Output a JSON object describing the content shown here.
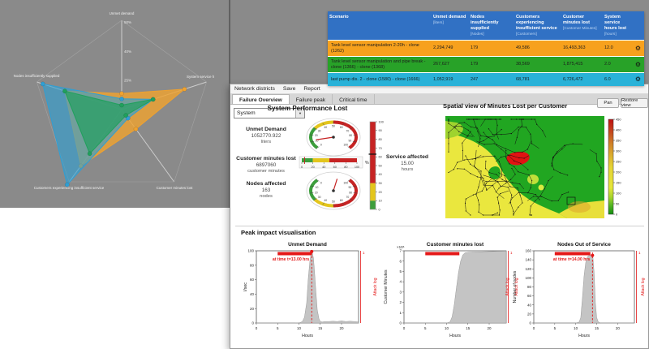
{
  "table": {
    "columns": [
      {
        "label": "Scenario",
        "sub": ""
      },
      {
        "label": "Unmet demand",
        "sub": "[liters]"
      },
      {
        "label": "Nodes insufficiently supplied",
        "sub": "[Nodes]"
      },
      {
        "label": "Customers experiencing insufficient service",
        "sub": "[Customers]"
      },
      {
        "label": "Customer minutes lost",
        "sub": "[Customer Minutes]"
      },
      {
        "label": "System service hours lost",
        "sub": "[hours]"
      }
    ],
    "rows": [
      {
        "scenario": "Tank level sensor manipulation 2-20h - clone (1262)",
        "values": [
          "2,294,749",
          "179",
          "49,586",
          "16,493,363",
          "12.0"
        ],
        "color": "#f7a11d"
      },
      {
        "scenario": "Tank level sensor manipulation and pipe break - clone (1366) - clone (1368)",
        "values": [
          "267,627",
          "179",
          "38,569",
          "1,875,415",
          "2.0"
        ],
        "color": "#28a228"
      },
      {
        "scenario": "last pump dis. 2 - clone (1580) - clone (1666)",
        "values": [
          "1,052,919",
          "247",
          "68,781",
          "6,726,472",
          "6.0"
        ],
        "color": "#29b2d8"
      }
    ],
    "gear_icon": "⚙"
  },
  "window": {
    "menu": [
      "Network districts",
      "Save",
      "Report"
    ],
    "tabs": [
      "Failure Overview",
      "Failure peak",
      "Critical time"
    ],
    "active_tab": "Failure Overview",
    "selector_value": "System",
    "left_title": "System Performance Lost",
    "peak_title": "Peak impact visualisation",
    "gauges": {
      "unmet": {
        "label": "Unmet Demand",
        "value": "1052770.922",
        "unit": "liters"
      },
      "cml": {
        "label": "Customer minutes lost",
        "value": "6897060",
        "unit": "customer minutes"
      },
      "nodes": {
        "label": "Nodes affected",
        "value": "163",
        "unit": "nodes"
      },
      "service": {
        "label": "Service affected",
        "value": "15.00",
        "unit": "hours"
      },
      "dial_ticks": [
        0,
        10,
        20,
        30,
        40,
        50,
        60,
        70,
        80,
        90,
        100
      ],
      "dial_segments": [
        [
          0,
          30,
          "#3c9e3c"
        ],
        [
          30,
          50,
          "#e3c51c"
        ],
        [
          50,
          100,
          "#c62323"
        ]
      ],
      "dial1_value": 12,
      "dial2_needle_deg": 78,
      "linear": {
        "ticks": [
          0,
          20,
          40,
          60,
          80,
          100
        ],
        "segments": [
          [
            0,
            20,
            "#3c9e3c"
          ],
          [
            20,
            50,
            "#e3c51c"
          ],
          [
            50,
            100,
            "#c62323"
          ]
        ],
        "marker": 5,
        "unit": "%"
      },
      "vertical": {
        "ticks": [
          0,
          10,
          20,
          30,
          40,
          50,
          60,
          70,
          80,
          90,
          100
        ],
        "segments": [
          [
            0,
            10,
            "#3c9e3c"
          ],
          [
            10,
            30,
            "#e3c51c"
          ],
          [
            30,
            100,
            "#c62323"
          ]
        ],
        "marker": 63
      }
    },
    "map": {
      "title": "Spatial view of Minutes Lost per Customer",
      "buttons": [
        "Pan",
        "Restore view"
      ],
      "colorbar_ticks": [
        0,
        50,
        100,
        150,
        200,
        250,
        300,
        350,
        400,
        450
      ],
      "colors": {
        "green": "#21a621",
        "yellow": "#eae73e",
        "red": "#e01212",
        "light_green": "#9fd32e",
        "orange": "#dfa42c"
      }
    }
  },
  "chart_data": [
    {
      "type": "radar",
      "axes": [
        "Unmet demand",
        "System service h",
        "Customer minutes lost",
        "Customers experiencing insufficient service",
        "Nodes insufficiently supplied"
      ],
      "tick_labels": [
        {
          "label": "50%",
          "r": 0.98
        },
        {
          "label": "40%",
          "r": 0.655
        },
        {
          "label": "25%",
          "r": 0.33
        }
      ],
      "series": [
        {
          "name": "Tank level sensor manipulation 2-20h - clone (1262)",
          "color": "#f0a22e",
          "fill_opacity": 0.8,
          "values": [
            0.18,
            0.74,
            0.27,
            0.78,
            0.67
          ]
        },
        {
          "name": "last pump dis. 2 - clone (1580) - clone (1666)",
          "color": "#2f9fd4",
          "fill_opacity": 0.62,
          "values": [
            0.12,
            0.37,
            0.12,
            1.04,
            0.93
          ]
        },
        {
          "name": "Tank level sensor manipulation and pipe break - clone (1366) - clone (1368)",
          "color": "#1fa05c",
          "fill_opacity": 0.66,
          "values": [
            0.05,
            0.37,
            0.08,
            0.61,
            0.67
          ]
        }
      ]
    },
    {
      "type": "area",
      "title": "Unmet Demand",
      "xlabel": "Hours",
      "ylabel": "l/sec",
      "xlim": [
        0,
        24
      ],
      "ylim": [
        0,
        100
      ],
      "xticks": [
        0,
        5,
        10,
        15,
        20
      ],
      "yticks": [
        0,
        20,
        40,
        60,
        80,
        100
      ],
      "x": [
        0,
        9,
        10.2,
        10.8,
        11.3,
        11.8,
        12.2,
        12.6,
        12.9,
        13.1,
        13.4,
        13.7,
        14,
        14.3,
        14.7,
        15,
        15.5,
        16,
        17,
        18,
        19,
        20,
        20.5,
        21,
        22,
        23,
        24
      ],
      "y": [
        0,
        0,
        0.5,
        2,
        8,
        28,
        62,
        88,
        97,
        98,
        90,
        68,
        42,
        18,
        6,
        2,
        1.5,
        2,
        2,
        2.5,
        2,
        3,
        2.5,
        2,
        2.5,
        2,
        1.5
      ],
      "attack_band": [
        5,
        13
      ],
      "attack_label": "Attack log",
      "right_tick": "1",
      "annotation": {
        "lines": [
          "at time t=13.00 hrs"
        ],
        "x": 13,
        "dot_y": 99
      },
      "fill": "#c4c4c4"
    },
    {
      "type": "area",
      "title": "Customer minutes lost",
      "xlabel": "Hours",
      "ylabel": "Customer Minutes",
      "mult": "×10⁶",
      "xlim": [
        0,
        24
      ],
      "ylim": [
        0,
        7
      ],
      "xticks": [
        0,
        5,
        10,
        15,
        20
      ],
      "yticks": [
        0,
        1,
        2,
        3,
        4,
        5,
        6,
        7
      ],
      "x": [
        0,
        10,
        10.8,
        11.3,
        11.8,
        12.3,
        12.8,
        13.3,
        13.8,
        14.3,
        15,
        16,
        18,
        20,
        22,
        24
      ],
      "y": [
        0,
        0,
        0.1,
        0.6,
        1.8,
        3.4,
        4.9,
        6.0,
        6.6,
        6.8,
        6.85,
        6.88,
        6.9,
        6.93,
        6.95,
        6.97
      ],
      "attack_band": [
        5,
        13
      ],
      "attack_label": "Attack log",
      "right_tick": "1",
      "fill": "#c4c4c4"
    },
    {
      "type": "area",
      "title": "Nodes Out of Service",
      "xlabel": "Hours",
      "ylabel": "Number of nodes",
      "xlim": [
        0,
        24
      ],
      "ylim": [
        0,
        160
      ],
      "xticks": [
        0,
        5,
        10,
        15,
        20
      ],
      "yticks": [
        0,
        20,
        40,
        60,
        80,
        100,
        120,
        140,
        160
      ],
      "x": [
        0,
        10,
        10.8,
        11.2,
        11.6,
        12,
        12.4,
        12.8,
        13.2,
        13.6,
        13.9,
        14.1,
        14.4,
        14.7,
        15,
        15.4,
        16,
        24
      ],
      "y": [
        0,
        0,
        2,
        12,
        55,
        105,
        135,
        147,
        150,
        150,
        149,
        145,
        110,
        45,
        12,
        2,
        0,
        0
      ],
      "attack_band": [
        5,
        13.5
      ],
      "attack_label": "Attack log",
      "left_attack_label": "Attack log",
      "right_tick": "1",
      "annotation": {
        "lines": [
          "at time t=14.00 hrs"
        ],
        "x": 14,
        "dot_y": 150
      },
      "fill": "#c4c4c4"
    }
  ]
}
